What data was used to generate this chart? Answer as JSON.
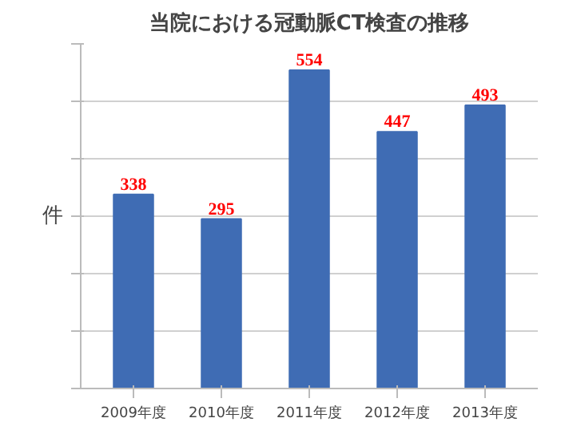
{
  "chart_data": {
    "type": "bar",
    "title": "当院における冠動脈CT検査の推移",
    "ylabel": "件",
    "categories": [
      "2009年度",
      "2010年度",
      "2011年度",
      "2012年度",
      "2013年度"
    ],
    "values": [
      338,
      295,
      554,
      447,
      493
    ],
    "color": "#3f6cb4",
    "data_labels": true,
    "ylim": [
      0,
      600
    ],
    "yticks": [
      {
        "value": 0,
        "label": null
      },
      {
        "value": 100,
        "label": null
      },
      {
        "value": 200,
        "label": null
      },
      {
        "value": 300,
        "label": null
      },
      {
        "value": 400,
        "label": null
      },
      {
        "value": 500,
        "label": null
      },
      {
        "value": 600,
        "label": null
      }
    ],
    "tick_labels": "x",
    "grid": "y"
  }
}
